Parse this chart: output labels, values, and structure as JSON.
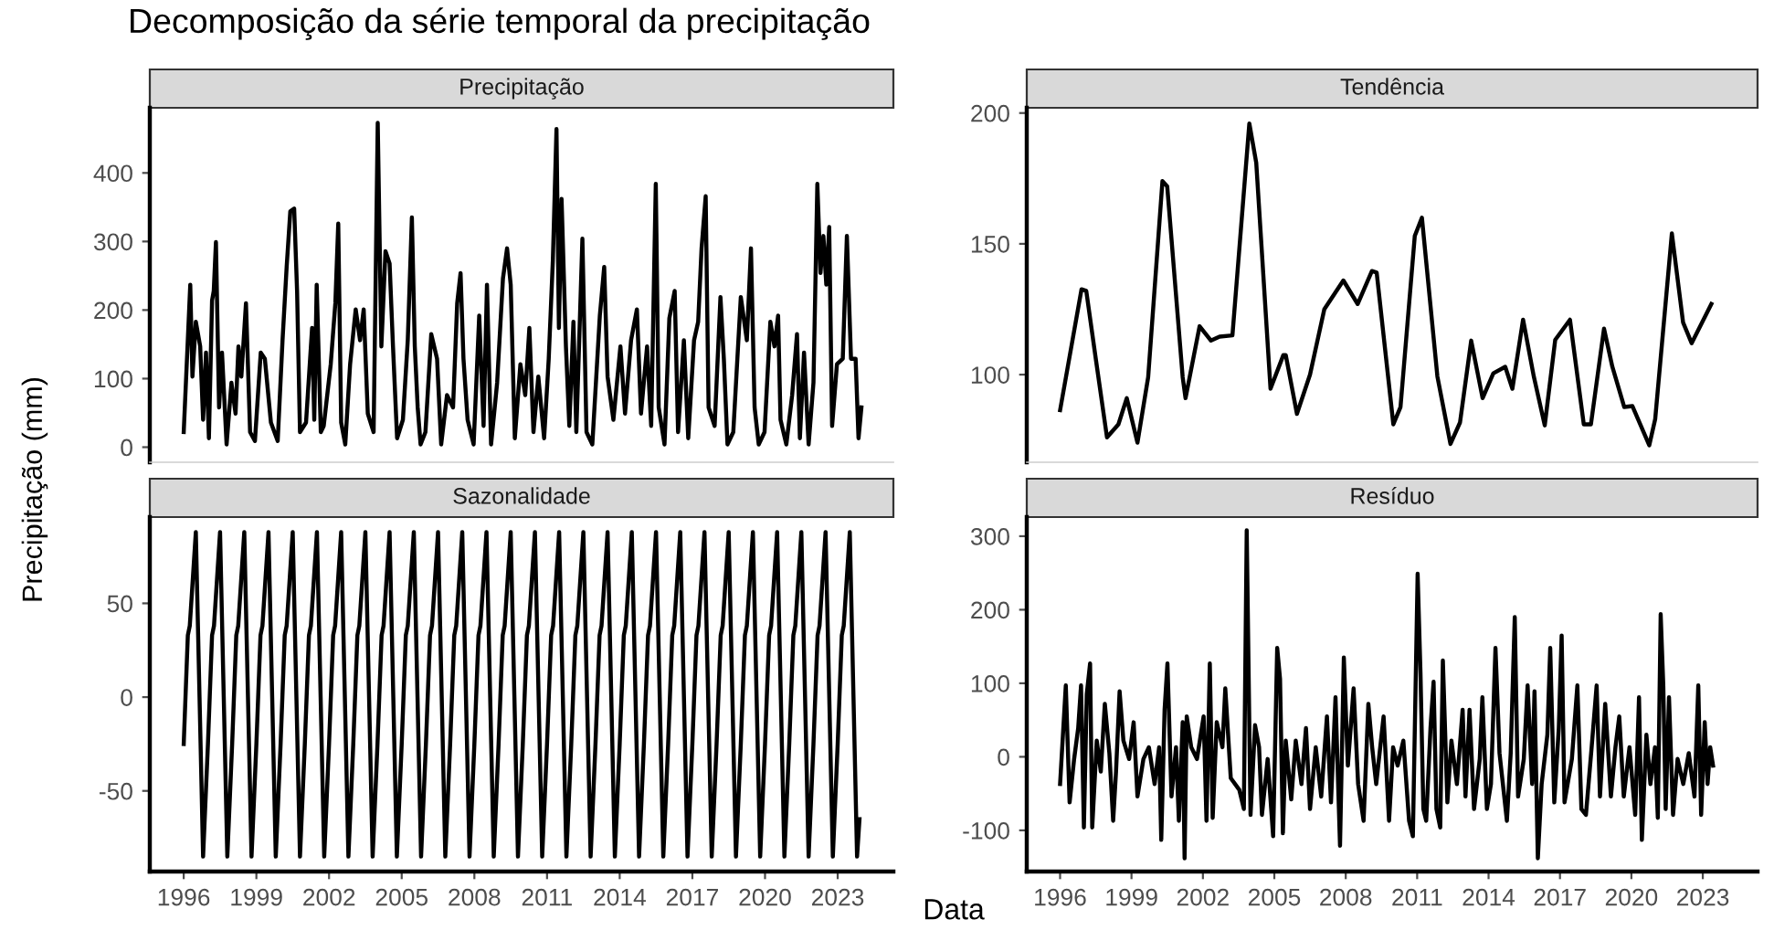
{
  "chart_data": [
    {
      "type": "line",
      "title": "Decomposição da série temporal da precipitação",
      "subtitle": "Precipitação",
      "ylabel": "Precipitação (mm)",
      "color": "#000000",
      "tick_labels": "y",
      "xlim": [
        1994.6,
        2025.3
      ],
      "xticks": [
        1996,
        1999,
        2002,
        2005,
        2008,
        2011,
        2014,
        2017,
        2020,
        2023
      ],
      "ylim": [
        -22,
        495
      ],
      "yticks": [
        0,
        100,
        200,
        300,
        400
      ],
      "x": [
        1996.0,
        1996.27,
        1996.36,
        1996.5,
        1996.68,
        1996.8,
        1996.92,
        1997.04,
        1997.17,
        1997.24,
        1997.33,
        1997.46,
        1997.58,
        1997.77,
        1997.97,
        1998.14,
        1998.26,
        1998.38,
        1998.57,
        1998.74,
        1998.94,
        1999.18,
        1999.35,
        1999.6,
        1999.88,
        2000.08,
        2000.25,
        2000.4,
        2000.56,
        2000.68,
        2000.8,
        2001.05,
        2001.3,
        2001.39,
        2001.49,
        2001.66,
        2001.78,
        2002.07,
        2002.26,
        2002.38,
        2002.5,
        2002.67,
        2002.87,
        2003.1,
        2003.28,
        2003.43,
        2003.6,
        2003.84,
        2004.01,
        2004.16,
        2004.33,
        2004.5,
        2004.64,
        2004.81,
        2005.05,
        2005.25,
        2005.42,
        2005.54,
        2005.66,
        2005.78,
        2005.98,
        2006.22,
        2006.46,
        2006.63,
        2006.87,
        2007.12,
        2007.29,
        2007.43,
        2007.55,
        2007.72,
        2007.97,
        2008.2,
        2008.38,
        2008.52,
        2008.69,
        2008.94,
        2009.18,
        2009.35,
        2009.5,
        2009.67,
        2009.9,
        2010.1,
        2010.27,
        2010.44,
        2010.64,
        2010.88,
        2011.07,
        2011.24,
        2011.39,
        2011.49,
        2011.6,
        2011.78,
        2011.92,
        2012.09,
        2012.21,
        2012.46,
        2012.63,
        2012.87,
        2013.18,
        2013.36,
        2013.5,
        2013.74,
        2014.03,
        2014.22,
        2014.47,
        2014.71,
        2014.88,
        2015.13,
        2015.3,
        2015.49,
        2015.61,
        2015.85,
        2016.05,
        2016.27,
        2016.41,
        2016.65,
        2016.83,
        2017.07,
        2017.24,
        2017.38,
        2017.55,
        2017.67,
        2017.92,
        2018.16,
        2018.3,
        2018.45,
        2018.69,
        2019.0,
        2019.25,
        2019.42,
        2019.57,
        2019.74,
        2019.98,
        2020.22,
        2020.39,
        2020.54,
        2020.64,
        2020.88,
        2021.12,
        2021.32,
        2021.44,
        2021.61,
        2021.8,
        2022.0,
        2022.16,
        2022.29,
        2022.41,
        2022.53,
        2022.65,
        2022.77,
        2022.97,
        2023.21,
        2023.38,
        2023.55,
        2023.74,
        2023.86,
        2023.98
      ],
      "values": [
        22,
        237,
        103,
        183,
        147,
        40,
        138,
        13,
        214,
        228,
        299,
        58,
        138,
        4,
        94,
        49,
        147,
        103,
        210,
        22,
        9,
        138,
        129,
        36,
        9,
        156,
        263,
        344,
        348,
        228,
        22,
        36,
        174,
        40,
        237,
        22,
        31,
        121,
        210,
        326,
        36,
        4,
        121,
        201,
        156,
        201,
        49,
        22,
        473,
        147,
        286,
        268,
        147,
        13,
        40,
        156,
        335,
        147,
        58,
        4,
        22,
        165,
        129,
        4,
        76,
        58,
        210,
        254,
        129,
        40,
        4,
        192,
        31,
        237,
        4,
        94,
        246,
        290,
        237,
        13,
        121,
        76,
        174,
        22,
        103,
        13,
        129,
        272,
        464,
        174,
        362,
        147,
        31,
        183,
        22,
        304,
        22,
        4,
        192,
        263,
        103,
        40,
        147,
        49,
        156,
        201,
        49,
        147,
        31,
        384,
        58,
        4,
        188,
        228,
        22,
        156,
        13,
        156,
        183,
        290,
        366,
        58,
        31,
        219,
        129,
        4,
        22,
        219,
        156,
        290,
        58,
        4,
        22,
        183,
        147,
        192,
        40,
        4,
        76,
        165,
        13,
        138,
        4,
        94,
        384,
        254,
        308,
        237,
        321,
        31,
        121,
        129,
        308,
        129,
        129,
        13,
        58
      ]
    },
    {
      "type": "line",
      "subtitle": "Tendência",
      "color": "#000000",
      "tick_labels": "y",
      "xlim": [
        1994.6,
        2025.3
      ],
      "xticks": [
        1996,
        1999,
        2002,
        2005,
        2008,
        2011,
        2014,
        2017,
        2020,
        2023
      ],
      "ylim": [
        66.5,
        202
      ],
      "yticks": [
        100,
        150,
        200
      ],
      "x": [
        1996.0,
        1996.9,
        1997.1,
        1997.5,
        1997.97,
        1998.45,
        1998.8,
        1999.25,
        1999.7,
        2000.3,
        2000.5,
        2001.15,
        2001.27,
        2001.86,
        2002.34,
        2002.7,
        2003.24,
        2003.95,
        2004.24,
        2004.84,
        2005.38,
        2005.48,
        2005.95,
        2006.5,
        2007.1,
        2007.9,
        2008.5,
        2009.1,
        2009.3,
        2010.0,
        2010.3,
        2010.9,
        2011.2,
        2011.85,
        2012.4,
        2012.8,
        2013.27,
        2013.75,
        2014.2,
        2014.7,
        2015.0,
        2015.45,
        2015.9,
        2016.36,
        2016.8,
        2017.42,
        2018.0,
        2018.3,
        2018.85,
        2019.2,
        2019.7,
        2020.04,
        2020.75,
        2021.0,
        2021.7,
        2022.17,
        2022.53,
        2023.36
      ],
      "values": [
        86.4,
        132.6,
        132,
        106,
        76,
        81,
        91,
        74,
        99,
        174,
        172,
        99,
        91,
        118.5,
        113,
        114.5,
        115,
        196,
        181,
        94.6,
        107.5,
        107.5,
        85,
        100,
        125,
        136,
        127,
        139.6,
        139,
        81,
        87.6,
        153,
        160,
        99.3,
        73.5,
        81.7,
        113,
        91,
        100.5,
        103,
        94.6,
        121,
        99.3,
        80.6,
        113.3,
        121,
        81,
        81,
        117.6,
        103,
        87.6,
        88,
        73,
        83,
        154,
        120,
        112,
        127
      ]
    },
    {
      "type": "line",
      "subtitle": "Sazonalidade",
      "color": "#000000",
      "xlim": [
        1994.6,
        2025.3
      ],
      "ylim": [
        -93,
        96
      ],
      "yticks": [
        -50,
        0,
        50
      ],
      "xticks": [
        1996,
        1999,
        2002,
        2005,
        2008,
        2011,
        2014,
        2017,
        2020,
        2023
      ],
      "x": [
        1996,
        1996.17,
        1996.25,
        1996.5,
        1996.8,
        1997,
        1997.17,
        1997.25,
        1997.5,
        1997.8,
        1998,
        1998.17,
        1998.25,
        1998.5,
        1998.8,
        1999,
        1999.17,
        1999.25,
        1999.5,
        1999.8,
        2000,
        2000.17,
        2000.25,
        2000.5,
        2000.8,
        2001,
        2001.17,
        2001.25,
        2001.5,
        2001.8,
        2002,
        2002.17,
        2002.25,
        2002.5,
        2002.8,
        2003,
        2003.17,
        2003.25,
        2003.5,
        2003.8,
        2004,
        2004.17,
        2004.25,
        2004.5,
        2004.8,
        2005,
        2005.17,
        2005.25,
        2005.5,
        2005.8,
        2006,
        2006.17,
        2006.25,
        2006.5,
        2006.8,
        2007,
        2007.17,
        2007.25,
        2007.5,
        2007.8,
        2008,
        2008.17,
        2008.25,
        2008.5,
        2008.8,
        2009,
        2009.17,
        2009.25,
        2009.5,
        2009.8,
        2010,
        2010.17,
        2010.25,
        2010.5,
        2010.8,
        2011,
        2011.17,
        2011.25,
        2011.5,
        2011.8,
        2012,
        2012.17,
        2012.25,
        2012.5,
        2012.8,
        2013,
        2013.17,
        2013.25,
        2013.5,
        2013.8,
        2014,
        2014.17,
        2014.25,
        2014.5,
        2014.8,
        2015,
        2015.17,
        2015.25,
        2015.5,
        2015.8,
        2016,
        2016.17,
        2016.25,
        2016.5,
        2016.8,
        2017,
        2017.17,
        2017.25,
        2017.5,
        2017.8,
        2018,
        2018.17,
        2018.25,
        2018.5,
        2018.8,
        2019,
        2019.17,
        2019.25,
        2019.5,
        2019.8,
        2020,
        2020.17,
        2020.25,
        2020.5,
        2020.8,
        2021,
        2021.17,
        2021.25,
        2021.5,
        2021.8,
        2022,
        2022.17,
        2022.25,
        2022.5,
        2022.8,
        2023,
        2023.17,
        2023.25,
        2023.5,
        2023.8,
        2023.9
      ],
      "values": [
        -25,
        33,
        38,
        88,
        -85,
        -25,
        33,
        38,
        88,
        -85,
        -25,
        33,
        38,
        88,
        -85,
        -25,
        33,
        38,
        88,
        -85,
        -25,
        33,
        38,
        88,
        -85,
        -25,
        33,
        38,
        88,
        -85,
        -25,
        33,
        38,
        88,
        -85,
        -25,
        33,
        38,
        88,
        -85,
        -25,
        33,
        38,
        88,
        -85,
        -25,
        33,
        38,
        88,
        -85,
        -25,
        33,
        38,
        88,
        -85,
        -25,
        33,
        38,
        88,
        -85,
        -25,
        33,
        38,
        88,
        -85,
        -25,
        33,
        38,
        88,
        -85,
        -25,
        33,
        38,
        88,
        -85,
        -25,
        33,
        38,
        88,
        -85,
        -25,
        33,
        38,
        88,
        -85,
        -25,
        33,
        38,
        88,
        -85,
        -25,
        33,
        38,
        88,
        -85,
        -25,
        33,
        38,
        88,
        -85,
        -25,
        33,
        38,
        88,
        -85,
        -25,
        33,
        38,
        88,
        -85,
        -25,
        33,
        38,
        88,
        -85,
        -25,
        33,
        38,
        88,
        -85,
        -25,
        33,
        38,
        88,
        -85,
        -25,
        33,
        38,
        88,
        -85,
        -25,
        33,
        38,
        88,
        -85,
        -25,
        33,
        38,
        88,
        -85,
        -65
      ]
    },
    {
      "type": "line",
      "subtitle": "Resíduo",
      "xlabel": "Data",
      "color": "#000000",
      "xlim": [
        1994.6,
        2025.3
      ],
      "ylim": [
        -156,
        326
      ],
      "yticks": [
        -100,
        0,
        100,
        200,
        300
      ],
      "xticks": [
        1996,
        1999,
        2002,
        2005,
        2008,
        2011,
        2014,
        2017,
        2020,
        2023
      ],
      "x": [
        1996.0,
        1996.24,
        1996.4,
        1996.59,
        1996.76,
        1996.88,
        1997.0,
        1997.12,
        1997.26,
        1997.35,
        1997.54,
        1997.71,
        1997.88,
        1998.07,
        1998.23,
        1998.35,
        1998.5,
        1998.66,
        1998.9,
        1999.09,
        1999.25,
        1999.5,
        1999.73,
        1999.97,
        2000.16,
        2000.25,
        2000.39,
        2000.51,
        2000.68,
        2000.87,
        2000.99,
        2001.15,
        2001.23,
        2001.32,
        2001.51,
        2001.75,
        2002.03,
        2002.15,
        2002.29,
        2002.41,
        2002.58,
        2002.82,
        2002.94,
        2003.17,
        2003.53,
        2003.72,
        2003.84,
        2004.0,
        2004.19,
        2004.36,
        2004.48,
        2004.72,
        2004.95,
        2005.12,
        2005.24,
        2005.36,
        2005.48,
        2005.71,
        2005.9,
        2006.14,
        2006.33,
        2006.5,
        2006.74,
        2006.97,
        2007.21,
        2007.38,
        2007.57,
        2007.76,
        2007.92,
        2008.09,
        2008.33,
        2008.52,
        2008.75,
        2008.95,
        2009.11,
        2009.28,
        2009.59,
        2009.82,
        2009.99,
        2010.18,
        2010.42,
        2010.66,
        2010.82,
        2011.02,
        2011.14,
        2011.26,
        2011.38,
        2011.56,
        2011.69,
        2011.81,
        2011.97,
        2012.08,
        2012.27,
        2012.44,
        2012.67,
        2012.91,
        2013.03,
        2013.2,
        2013.39,
        2013.63,
        2013.74,
        2013.93,
        2014.1,
        2014.29,
        2014.46,
        2014.77,
        2014.93,
        2015.1,
        2015.24,
        2015.48,
        2015.64,
        2015.83,
        2015.93,
        2016.07,
        2016.23,
        2016.47,
        2016.59,
        2016.76,
        2016.95,
        2017.07,
        2017.19,
        2017.5,
        2017.73,
        2017.9,
        2018.09,
        2018.33,
        2018.54,
        2018.68,
        2018.9,
        2019.14,
        2019.33,
        2019.49,
        2019.68,
        2019.92,
        2020.16,
        2020.32,
        2020.44,
        2020.63,
        2020.8,
        2020.99,
        2021.11,
        2021.23,
        2021.34,
        2021.44,
        2021.58,
        2021.75,
        2021.94,
        2022.18,
        2022.41,
        2022.65,
        2022.81,
        2022.93,
        2023.08,
        2023.2,
        2023.31,
        2023.43
      ],
      "values": [
        -37,
        97,
        -62,
        -3,
        39,
        97,
        -96,
        85,
        127,
        -96,
        22,
        -20,
        72,
        5,
        -87,
        -20,
        89,
        22,
        -3,
        47,
        -54,
        -3,
        13,
        -37,
        13,
        -113,
        64,
        127,
        -54,
        13,
        -87,
        47,
        -138,
        55,
        13,
        -3,
        55,
        -87,
        127,
        -83,
        47,
        13,
        93,
        -29,
        -45,
        -71,
        308,
        -79,
        43,
        13,
        -79,
        -3,
        -108,
        148,
        106,
        -104,
        22,
        -58,
        22,
        -37,
        39,
        -71,
        13,
        -54,
        55,
        -62,
        81,
        -121,
        135,
        -12,
        93,
        -37,
        -87,
        72,
        13,
        -37,
        55,
        -87,
        13,
        -12,
        22,
        -87,
        -108,
        249,
        114,
        -71,
        -87,
        39,
        102,
        -71,
        -96,
        131,
        -62,
        22,
        -37,
        64,
        -54,
        64,
        -71,
        -3,
        81,
        -71,
        -37,
        148,
        5,
        -87,
        5,
        190,
        -54,
        -3,
        97,
        -37,
        89,
        -138,
        -37,
        30,
        148,
        -62,
        39,
        165,
        -62,
        -3,
        97,
        -71,
        -79,
        13,
        97,
        -54,
        72,
        -54,
        13,
        55,
        -54,
        13,
        -79,
        81,
        -113,
        30,
        -37,
        13,
        -83,
        194,
        97,
        -71,
        81,
        -79,
        -3,
        -37,
        5,
        -54,
        97,
        -79,
        47,
        -37,
        13,
        -12
      ]
    }
  ]
}
